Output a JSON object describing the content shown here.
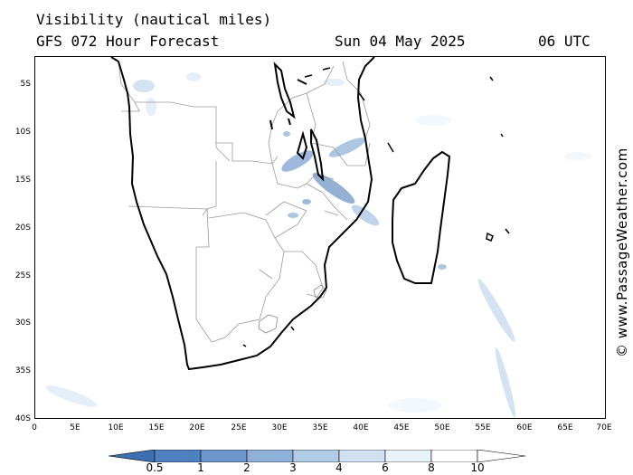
{
  "header": {
    "title": "Visibility (nautical miles)",
    "subtitle": "GFS 072 Hour Forecast",
    "datetime": "Sun 04 May 2025",
    "run": "06 UTC"
  },
  "credit": "© www.PassageWeather.com",
  "axes": {
    "lat_labels": [
      "5S",
      "10S",
      "15S",
      "20S",
      "25S",
      "30S",
      "35S",
      "40S"
    ],
    "lon_labels": [
      "0",
      "5E",
      "10E",
      "15E",
      "20E",
      "25E",
      "30E",
      "35E",
      "40E",
      "45E",
      "50E",
      "55E",
      "60E",
      "65E",
      "70E"
    ]
  },
  "legend": {
    "labels": [
      "0.5",
      "1",
      "2",
      "3",
      "4",
      "6",
      "8",
      "10"
    ],
    "colors": [
      "#3d6fb0",
      "#4f80c0",
      "#6e97cc",
      "#8eb0d9",
      "#b2cbe6",
      "#d2e1f2",
      "#eaf2fa",
      "#ffffff"
    ]
  }
}
